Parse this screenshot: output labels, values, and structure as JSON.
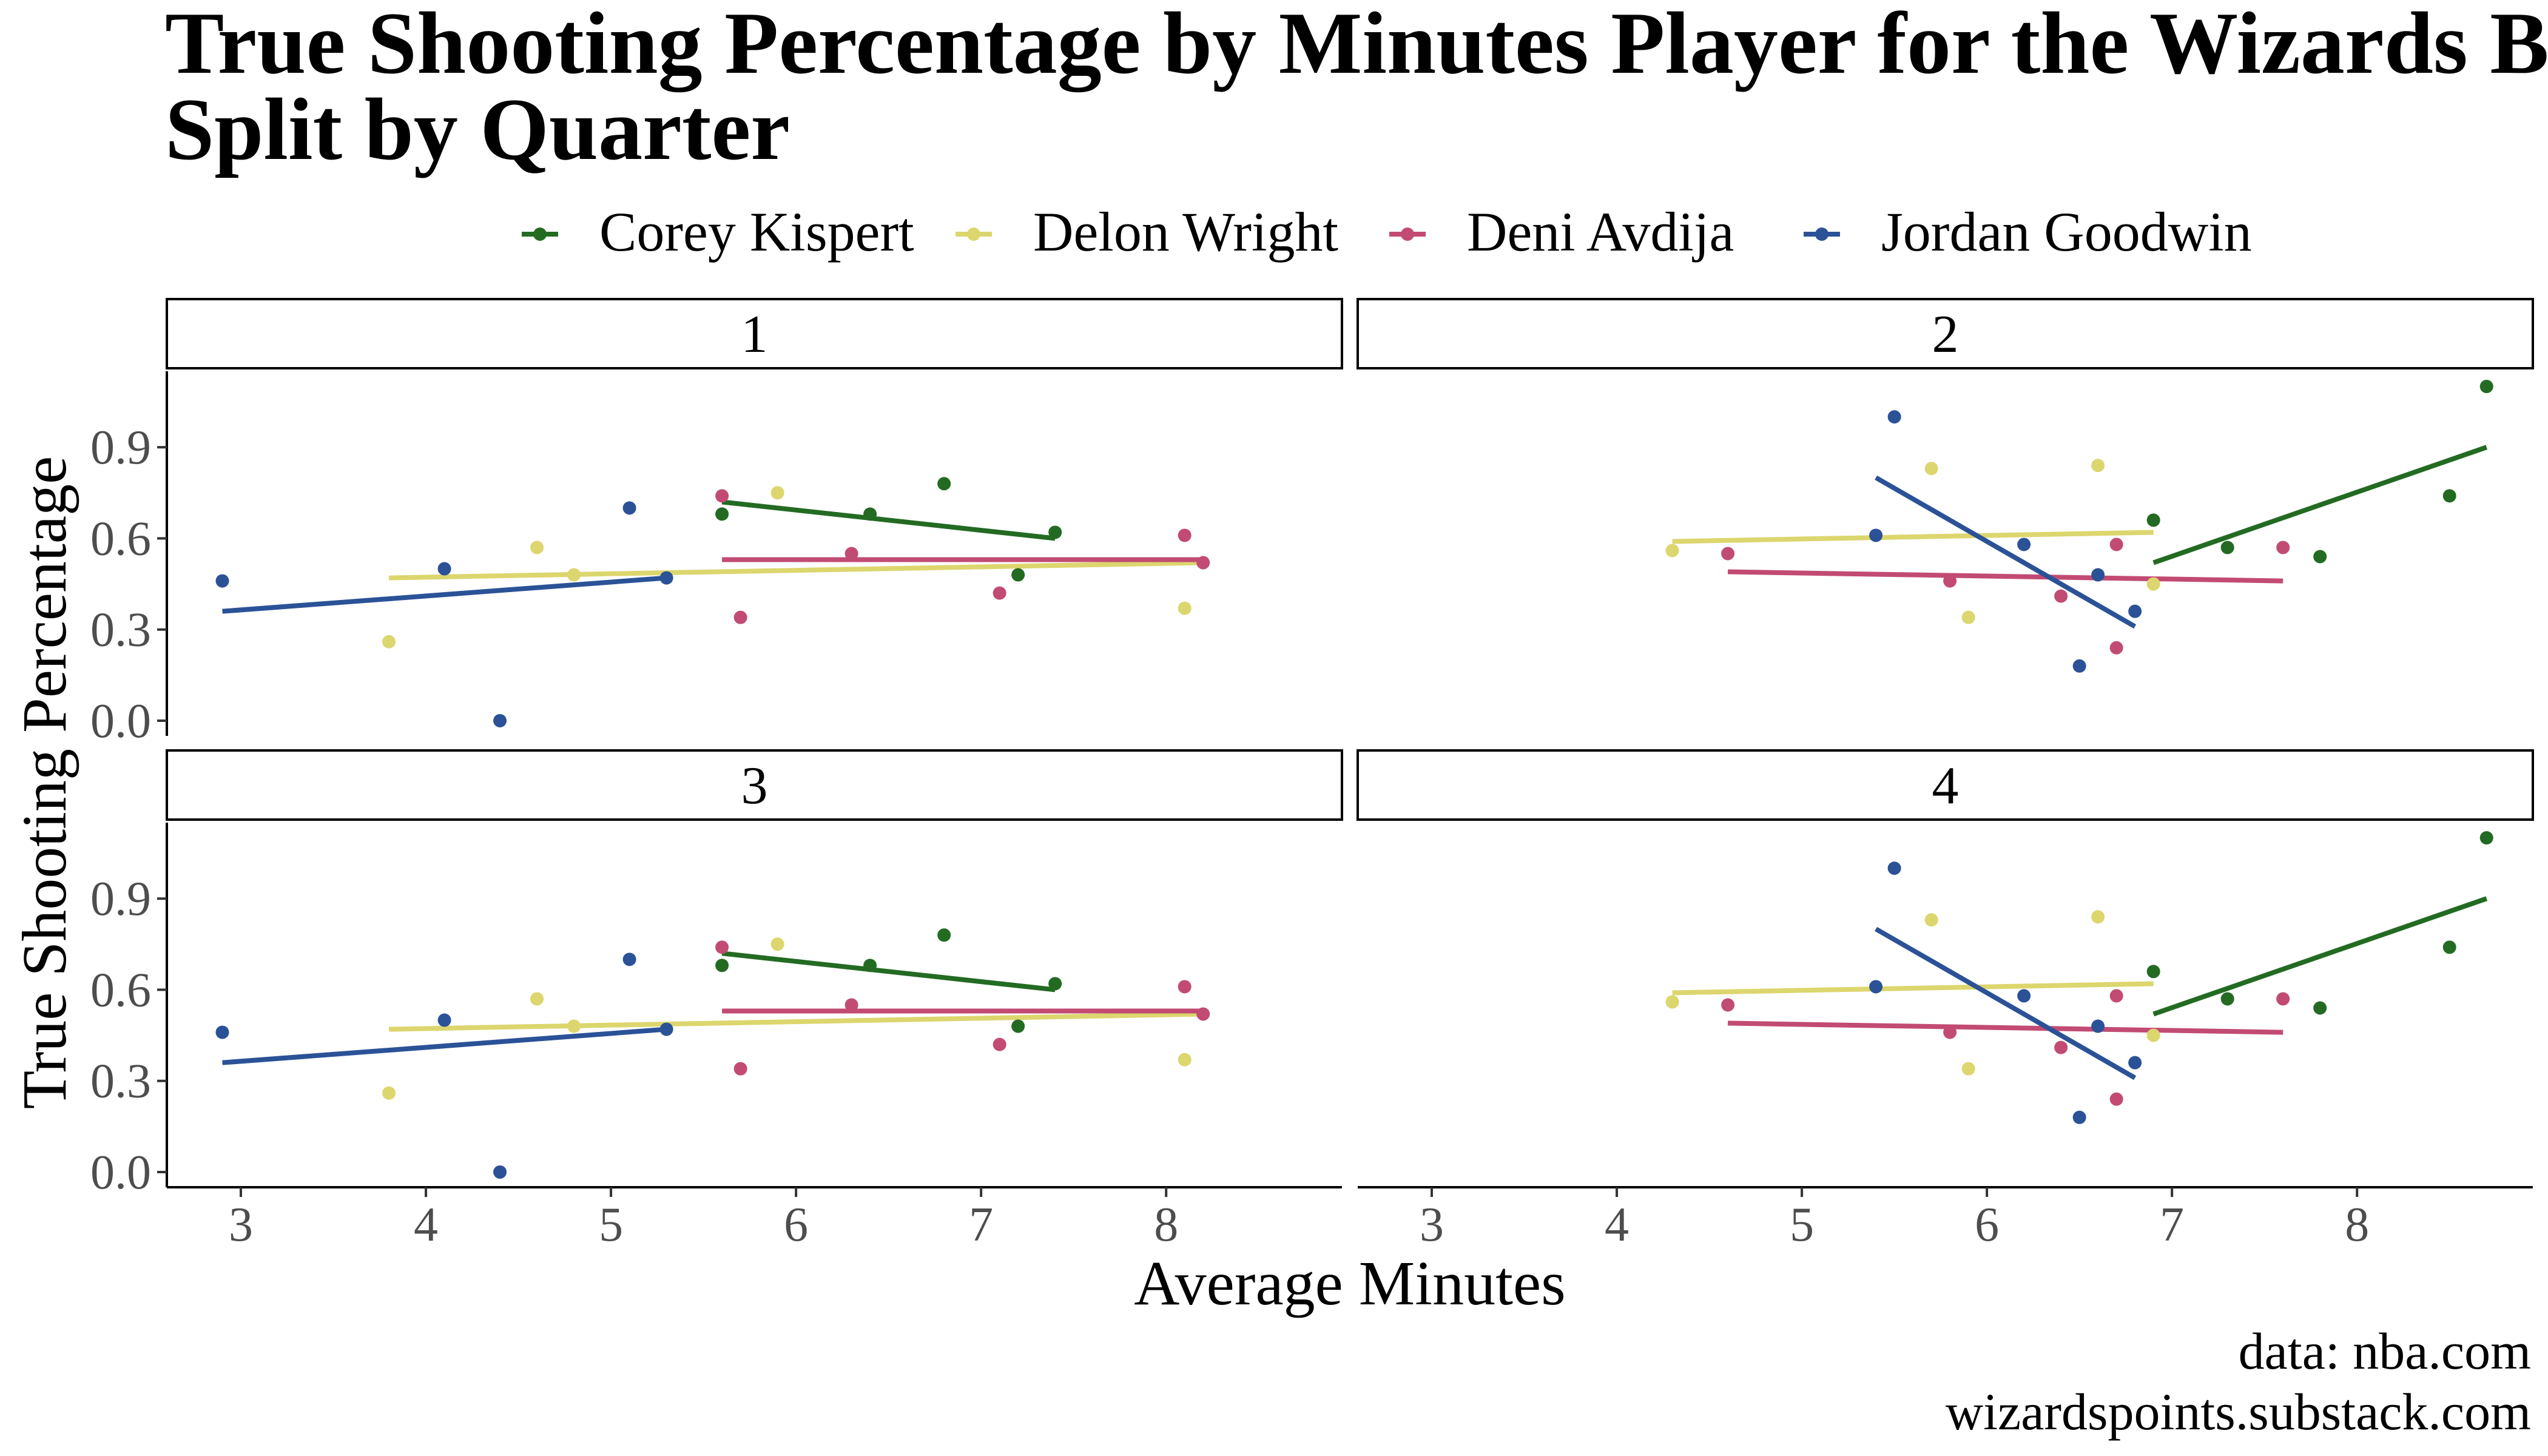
{
  "chart_data": {
    "type": "scatter",
    "title_lines": [
      "True Shooting Percentage by Minutes Player for the Wizards Bench",
      "Split by Quarter"
    ],
    "xlabel": "Average Minutes",
    "ylabel": "True Shooting Percentage",
    "caption_lines": [
      "data: nba.com",
      "wizardspoints.substack.com"
    ],
    "legend_position": "top",
    "grid": false,
    "x_ticks": [
      3,
      4,
      5,
      6,
      7,
      8
    ],
    "y_ticks": [
      0.0,
      0.3,
      0.6,
      0.9
    ],
    "y_tick_labels": [
      "0.0",
      "0.3",
      "0.6",
      "0.9"
    ],
    "xlim": [
      2.6,
      8.95
    ],
    "ylim": [
      -0.05,
      1.15
    ],
    "series": [
      {
        "name": "Corey Kispert",
        "color": "#236b23"
      },
      {
        "name": "Delon Wright",
        "color": "#dcd66e"
      },
      {
        "name": "Deni Avdija",
        "color": "#c24b73"
      },
      {
        "name": "Jordan Goodwin",
        "color": "#2b5297"
      }
    ],
    "panels": [
      {
        "label": "1",
        "points": [
          [
            [
              5.6,
              0.68
            ],
            [
              6.4,
              0.68
            ],
            [
              6.8,
              0.78
            ],
            [
              7.2,
              0.48
            ],
            [
              7.4,
              0.62
            ]
          ],
          [
            [
              3.8,
              0.26
            ],
            [
              4.6,
              0.57
            ],
            [
              4.8,
              0.48
            ],
            [
              5.9,
              0.75
            ],
            [
              8.1,
              0.37
            ]
          ],
          [
            [
              5.6,
              0.74
            ],
            [
              5.7,
              0.34
            ],
            [
              6.3,
              0.55
            ],
            [
              7.1,
              0.42
            ],
            [
              8.1,
              0.61
            ],
            [
              8.2,
              0.52
            ]
          ],
          [
            [
              2.9,
              0.46
            ],
            [
              4.1,
              0.5
            ],
            [
              4.4,
              0.0
            ],
            [
              5.1,
              0.7
            ],
            [
              5.3,
              0.47
            ]
          ]
        ],
        "fits": [
          [
            [
              5.6,
              0.72
            ],
            [
              7.4,
              0.6
            ]
          ],
          [
            [
              3.8,
              0.47
            ],
            [
              8.2,
              0.52
            ]
          ],
          [
            [
              5.6,
              0.53
            ],
            [
              8.2,
              0.53
            ]
          ],
          [
            [
              2.9,
              0.36
            ],
            [
              5.3,
              0.47
            ]
          ]
        ]
      },
      {
        "label": "2",
        "points": [
          [
            [
              6.9,
              0.66
            ],
            [
              7.3,
              0.57
            ],
            [
              7.8,
              0.54
            ],
            [
              8.5,
              0.74
            ],
            [
              8.7,
              1.1
            ]
          ],
          [
            [
              4.3,
              0.56
            ],
            [
              5.7,
              0.83
            ],
            [
              5.9,
              0.34
            ],
            [
              6.6,
              0.84
            ],
            [
              6.9,
              0.45
            ]
          ],
          [
            [
              4.6,
              0.55
            ],
            [
              5.8,
              0.46
            ],
            [
              6.4,
              0.41
            ],
            [
              6.7,
              0.58
            ],
            [
              6.7,
              0.24
            ],
            [
              7.6,
              0.57
            ]
          ],
          [
            [
              5.4,
              0.61
            ],
            [
              5.5,
              1.0
            ],
            [
              6.2,
              0.58
            ],
            [
              6.5,
              0.18
            ],
            [
              6.6,
              0.48
            ],
            [
              6.8,
              0.36
            ]
          ]
        ],
        "fits": [
          [
            [
              6.9,
              0.52
            ],
            [
              8.7,
              0.9
            ]
          ],
          [
            [
              4.3,
              0.59
            ],
            [
              6.9,
              0.62
            ]
          ],
          [
            [
              4.6,
              0.49
            ],
            [
              7.6,
              0.46
            ]
          ],
          [
            [
              5.4,
              0.8
            ],
            [
              6.8,
              0.31
            ]
          ]
        ]
      },
      {
        "label": "3",
        "points": [
          [
            [
              5.6,
              0.68
            ],
            [
              6.4,
              0.68
            ],
            [
              6.8,
              0.78
            ],
            [
              7.2,
              0.48
            ],
            [
              7.4,
              0.62
            ]
          ],
          [
            [
              3.8,
              0.26
            ],
            [
              4.6,
              0.57
            ],
            [
              4.8,
              0.48
            ],
            [
              5.9,
              0.75
            ],
            [
              8.1,
              0.37
            ]
          ],
          [
            [
              5.6,
              0.74
            ],
            [
              5.7,
              0.34
            ],
            [
              6.3,
              0.55
            ],
            [
              7.1,
              0.42
            ],
            [
              8.1,
              0.61
            ],
            [
              8.2,
              0.52
            ]
          ],
          [
            [
              2.9,
              0.46
            ],
            [
              4.1,
              0.5
            ],
            [
              4.4,
              0.0
            ],
            [
              5.1,
              0.7
            ],
            [
              5.3,
              0.47
            ]
          ]
        ],
        "fits": [
          [
            [
              5.6,
              0.72
            ],
            [
              7.4,
              0.6
            ]
          ],
          [
            [
              3.8,
              0.47
            ],
            [
              8.2,
              0.52
            ]
          ],
          [
            [
              5.6,
              0.53
            ],
            [
              8.2,
              0.53
            ]
          ],
          [
            [
              2.9,
              0.36
            ],
            [
              5.3,
              0.47
            ]
          ]
        ]
      },
      {
        "label": "4",
        "points": [
          [
            [
              6.9,
              0.66
            ],
            [
              7.3,
              0.57
            ],
            [
              7.8,
              0.54
            ],
            [
              8.5,
              0.74
            ],
            [
              8.7,
              1.1
            ]
          ],
          [
            [
              4.3,
              0.56
            ],
            [
              5.7,
              0.83
            ],
            [
              5.9,
              0.34
            ],
            [
              6.6,
              0.84
            ],
            [
              6.9,
              0.45
            ]
          ],
          [
            [
              4.6,
              0.55
            ],
            [
              5.8,
              0.46
            ],
            [
              6.4,
              0.41
            ],
            [
              6.7,
              0.58
            ],
            [
              6.7,
              0.24
            ],
            [
              7.6,
              0.57
            ]
          ],
          [
            [
              5.4,
              0.61
            ],
            [
              5.5,
              1.0
            ],
            [
              6.2,
              0.58
            ],
            [
              6.5,
              0.18
            ],
            [
              6.6,
              0.48
            ],
            [
              6.8,
              0.36
            ]
          ]
        ],
        "fits": [
          [
            [
              6.9,
              0.52
            ],
            [
              8.7,
              0.9
            ]
          ],
          [
            [
              4.3,
              0.59
            ],
            [
              6.9,
              0.62
            ]
          ],
          [
            [
              4.6,
              0.49
            ],
            [
              7.6,
              0.46
            ]
          ],
          [
            [
              5.4,
              0.8
            ],
            [
              6.8,
              0.31
            ]
          ]
        ]
      }
    ]
  }
}
